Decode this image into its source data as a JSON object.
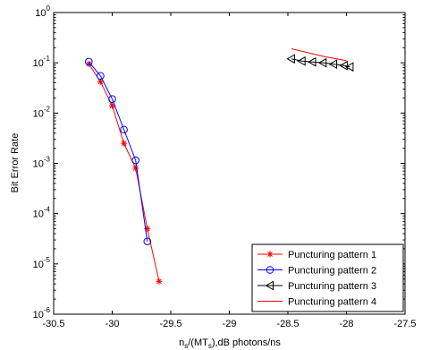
{
  "chart_data": {
    "type": "line",
    "xlabel": "n_s/(MT_s),dB photons/ns",
    "xlabel_main": "n",
    "xlabel_sub1": "s",
    "xlabel_mid": "/(MT",
    "xlabel_sub2": "s",
    "xlabel_tail": "),dB photons/ns",
    "ylabel": "Bit Error Rate",
    "xlim": [
      -30.5,
      -27.5
    ],
    "ylim": [
      1e-06,
      1
    ],
    "y_scale": "log",
    "x_ticks": [
      "-30.5",
      "-30",
      "-29.5",
      "-29",
      "-28.5",
      "-28",
      "-27.5"
    ],
    "x_tick_values": [
      -30.5,
      -30,
      -29.5,
      -29,
      -28.5,
      -28,
      -27.5
    ],
    "y_ticks": [
      {
        "base": "10",
        "exp": "0",
        "value": 1
      },
      {
        "base": "10",
        "exp": "-1",
        "value": 0.1
      },
      {
        "base": "10",
        "exp": "-2",
        "value": 0.01
      },
      {
        "base": "10",
        "exp": "-3",
        "value": 0.001
      },
      {
        "base": "10",
        "exp": "-4",
        "value": 0.0001
      },
      {
        "base": "10",
        "exp": "-5",
        "value": 1e-05
      },
      {
        "base": "10",
        "exp": "-6",
        "value": 1e-06
      }
    ],
    "legend_position": "bottom-right",
    "series": [
      {
        "name": "Puncturing pattern 1",
        "color": "#ff0000",
        "marker": "star",
        "x": [
          -30.2,
          -30.1,
          -30.0,
          -29.9,
          -29.8,
          -29.7,
          -29.6
        ],
        "y": [
          0.095,
          0.042,
          0.014,
          0.0025,
          0.0008,
          5e-05,
          4.5e-06
        ]
      },
      {
        "name": "Puncturing pattern 2",
        "color": "#0000ff",
        "marker": "circle",
        "x": [
          -30.2,
          -30.1,
          -30.0,
          -29.9,
          -29.8,
          -29.7
        ],
        "y": [
          0.105,
          0.055,
          0.019,
          0.0047,
          0.00115,
          2.8e-05
        ]
      },
      {
        "name": "Puncturing pattern 3",
        "color": "#000000",
        "marker": "triangle-left",
        "x": [
          -28.47,
          -28.38,
          -28.29,
          -28.2,
          -28.11,
          -28.02,
          -27.97
        ],
        "y": [
          0.12,
          0.108,
          0.104,
          0.1,
          0.094,
          0.088,
          0.083
        ]
      },
      {
        "name": "Puncturing pattern 4",
        "color": "#ff0000",
        "marker": "none",
        "x": [
          -28.47,
          -28.2,
          -28.0
        ],
        "y": [
          0.19,
          0.135,
          0.11
        ]
      }
    ]
  }
}
